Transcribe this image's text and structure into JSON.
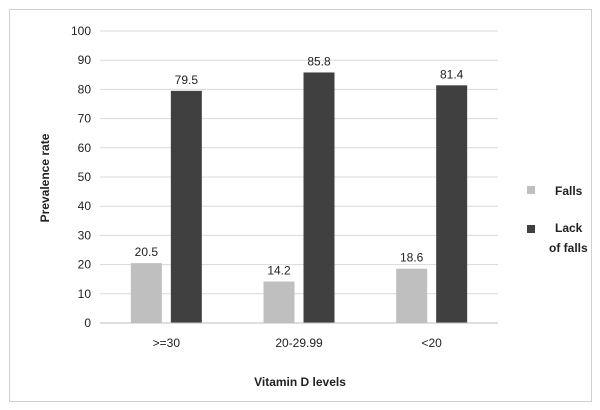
{
  "chart_data": {
    "type": "bar",
    "title": "",
    "xlabel": "Vitamin D levels",
    "ylabel": "Prevalence rate",
    "categories": [
      ">=30",
      "20-29.99",
      "<20"
    ],
    "series": [
      {
        "name": "Falls",
        "values": [
          20.5,
          14.2,
          18.6
        ],
        "color": "#bfbfbf"
      },
      {
        "name": "Lack of falls",
        "name_lines": [
          "Lack",
          "of falls"
        ],
        "values": [
          79.5,
          85.8,
          81.4
        ],
        "color": "#404040"
      }
    ],
    "ylim": [
      0,
      100
    ],
    "yticks": [
      0,
      10,
      20,
      30,
      40,
      50,
      60,
      70,
      80,
      90,
      100
    ],
    "grid": true,
    "legend": "right"
  }
}
